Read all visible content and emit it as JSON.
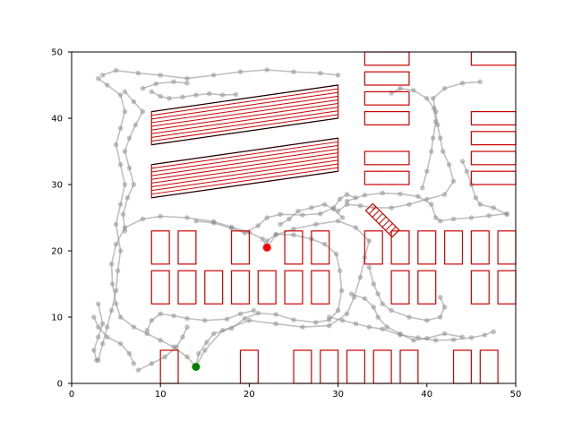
{
  "chart_data": {
    "type": "scatter",
    "title": "",
    "xlabel": "",
    "ylabel": "",
    "xlim": [
      0,
      50
    ],
    "ylim": [
      0,
      50
    ],
    "grid": false,
    "x_ticks": [
      "0",
      "10",
      "20",
      "30",
      "40",
      "50"
    ],
    "y_ticks": [
      "0",
      "10",
      "20",
      "30",
      "40",
      "50"
    ],
    "colors": {
      "obstacle": "#cc0000",
      "lane": "#000000",
      "path": "#8c8c8c",
      "start": "#008000",
      "goal": "#ff0000"
    },
    "start_point": [
      14.0,
      2.5
    ],
    "goal_point": [
      22.0,
      20.5
    ],
    "obstacles": [
      {
        "name": "slot-r1-1",
        "x": 10,
        "y": 0,
        "w": 2,
        "h": 5
      },
      {
        "name": "slot-r1-2",
        "x": 19,
        "y": 0,
        "w": 2,
        "h": 5
      },
      {
        "name": "slot-r1-3",
        "x": 25,
        "y": 0,
        "w": 2,
        "h": 5
      },
      {
        "name": "slot-r1-4",
        "x": 28,
        "y": 0,
        "w": 2,
        "h": 5
      },
      {
        "name": "slot-r1-5",
        "x": 31,
        "y": 0,
        "w": 2,
        "h": 5
      },
      {
        "name": "slot-r1-6",
        "x": 34,
        "y": 0,
        "w": 2,
        "h": 5
      },
      {
        "name": "slot-r1-7",
        "x": 37,
        "y": 0,
        "w": 2,
        "h": 5
      },
      {
        "name": "slot-r1-8",
        "x": 43,
        "y": 0,
        "w": 2,
        "h": 5
      },
      {
        "name": "slot-r1-9",
        "x": 46,
        "y": 0,
        "w": 2,
        "h": 5
      },
      {
        "name": "slot-r2-1",
        "x": 9,
        "y": 12,
        "w": 2,
        "h": 5
      },
      {
        "name": "slot-r2-2",
        "x": 12,
        "y": 12,
        "w": 2,
        "h": 5
      },
      {
        "name": "slot-r2-3",
        "x": 15,
        "y": 12,
        "w": 2,
        "h": 5
      },
      {
        "name": "slot-r2-4",
        "x": 18,
        "y": 12,
        "w": 2,
        "h": 5
      },
      {
        "name": "slot-r2-5",
        "x": 21,
        "y": 12,
        "w": 2,
        "h": 5
      },
      {
        "name": "slot-r2-6",
        "x": 24,
        "y": 12,
        "w": 2,
        "h": 5
      },
      {
        "name": "slot-r2-7",
        "x": 27,
        "y": 12,
        "w": 2,
        "h": 5
      },
      {
        "name": "slot-r2-8",
        "x": 36,
        "y": 12,
        "w": 2,
        "h": 5
      },
      {
        "name": "slot-r2-9",
        "x": 39,
        "y": 12,
        "w": 2,
        "h": 5
      },
      {
        "name": "slot-r2-10",
        "x": 45,
        "y": 12,
        "w": 2,
        "h": 5
      },
      {
        "name": "slot-r2-11",
        "x": 48,
        "y": 12,
        "w": 2,
        "h": 5
      },
      {
        "name": "slot-r3-1",
        "x": 9,
        "y": 18,
        "w": 2,
        "h": 5
      },
      {
        "name": "slot-r3-2",
        "x": 12,
        "y": 18,
        "w": 2,
        "h": 5
      },
      {
        "name": "slot-r3-3",
        "x": 18,
        "y": 18,
        "w": 2,
        "h": 5
      },
      {
        "name": "slot-r3-4",
        "x": 24,
        "y": 18,
        "w": 2,
        "h": 5
      },
      {
        "name": "slot-r3-5",
        "x": 27,
        "y": 18,
        "w": 2,
        "h": 5
      },
      {
        "name": "slot-r3-6",
        "x": 33,
        "y": 18,
        "w": 2,
        "h": 5
      },
      {
        "name": "slot-r3-7",
        "x": 36,
        "y": 18,
        "w": 2,
        "h": 5
      },
      {
        "name": "slot-r3-8",
        "x": 39,
        "y": 18,
        "w": 2,
        "h": 5
      },
      {
        "name": "slot-r3-9",
        "x": 42,
        "y": 18,
        "w": 2,
        "h": 5
      },
      {
        "name": "slot-r3-10",
        "x": 45,
        "y": 18,
        "w": 2,
        "h": 5
      },
      {
        "name": "slot-r3-11",
        "x": 48,
        "y": 18,
        "w": 2,
        "h": 5
      },
      {
        "name": "slot-top-1",
        "x": 33,
        "y": 30,
        "w": 5,
        "h": 2
      },
      {
        "name": "slot-top-2",
        "x": 33,
        "y": 33,
        "w": 5,
        "h": 2
      },
      {
        "name": "slot-top-3",
        "x": 33,
        "y": 39,
        "w": 5,
        "h": 2
      },
      {
        "name": "slot-top-4",
        "x": 33,
        "y": 42,
        "w": 5,
        "h": 2
      },
      {
        "name": "slot-top-5",
        "x": 33,
        "y": 45,
        "w": 5,
        "h": 2
      },
      {
        "name": "slot-top-6",
        "x": 33,
        "y": 48,
        "w": 5,
        "h": 2
      },
      {
        "name": "slot-right-1",
        "x": 45,
        "y": 30,
        "w": 5,
        "h": 2
      },
      {
        "name": "slot-right-2",
        "x": 45,
        "y": 33,
        "w": 5,
        "h": 2
      },
      {
        "name": "slot-right-3",
        "x": 45,
        "y": 36,
        "w": 5,
        "h": 2
      },
      {
        "name": "slot-right-4",
        "x": 45,
        "y": 39,
        "w": 5,
        "h": 2
      },
      {
        "name": "slot-right-5",
        "x": 45,
        "y": 48,
        "w": 5,
        "h": 2
      }
    ],
    "slanted_upper": {
      "x0": 9,
      "x1": 30,
      "y_left_bottom": 36,
      "y_right_bottom": 40,
      "y_left_top": 41,
      "y_right_top": 45,
      "stripes": 9
    },
    "slanted_lower": {
      "x0": 9,
      "x1": 30,
      "y_left_bottom": 28,
      "y_right_bottom": 32,
      "y_left_top": 33,
      "y_right_top": 37,
      "stripes": 9
    },
    "diagonal_block": {
      "cx": 35,
      "cy": 24.6,
      "length": 4.2,
      "width": 1.5,
      "angle_deg": -45,
      "stripes": 8
    },
    "paths": [
      [
        [
          14.0,
          2.5
        ],
        [
          14.3,
          4.5
        ],
        [
          15.2,
          6.2
        ],
        [
          16.0,
          7.5
        ],
        [
          18.0,
          8.3
        ],
        [
          19.5,
          9.8
        ],
        [
          21.0,
          10.6
        ],
        [
          23.0,
          10.4
        ],
        [
          25.0,
          9.6
        ],
        [
          27.5,
          9.2
        ],
        [
          29.0,
          9.6
        ],
        [
          30.0,
          11.0
        ],
        [
          30.4,
          14.0
        ],
        [
          30.2,
          17.0
        ],
        [
          29.8,
          19.5
        ],
        [
          28.5,
          21.0
        ],
        [
          27.0,
          21.8
        ],
        [
          25.0,
          22.4
        ],
        [
          23.0,
          22.5
        ],
        [
          22.0,
          21.5
        ],
        [
          22.0,
          20.5
        ]
      ],
      [
        [
          14.0,
          2.5
        ],
        [
          13.0,
          4.0
        ],
        [
          11.5,
          5.5
        ],
        [
          10.0,
          6.5
        ],
        [
          8.5,
          7.5
        ],
        [
          7.0,
          8.5
        ],
        [
          5.5,
          10.0
        ],
        [
          5.0,
          12.0
        ],
        [
          4.6,
          15.0
        ],
        [
          4.5,
          18.0
        ],
        [
          5.0,
          21.0
        ],
        [
          6.0,
          23.5
        ],
        [
          8.0,
          24.8
        ],
        [
          10.0,
          25.2
        ],
        [
          13.0,
          25.0
        ],
        [
          16.0,
          24.4
        ],
        [
          18.0,
          23.6
        ],
        [
          20.0,
          22.8
        ],
        [
          21.5,
          21.8
        ],
        [
          22.0,
          20.5
        ]
      ],
      [
        [
          14.0,
          2.5
        ],
        [
          15.0,
          5.0
        ],
        [
          17.0,
          8.0
        ],
        [
          20.0,
          9.5
        ],
        [
          23.0,
          9.0
        ],
        [
          26.0,
          8.5
        ],
        [
          29.0,
          8.7
        ],
        [
          31.0,
          10.5
        ],
        [
          31.8,
          13.0
        ],
        [
          32.5,
          16.0
        ],
        [
          33.0,
          19.0
        ],
        [
          33.5,
          21.5
        ],
        [
          32.0,
          23.5
        ],
        [
          30.0,
          24.5
        ],
        [
          27.5,
          24.0
        ],
        [
          25.0,
          23.3
        ],
        [
          23.0,
          22.4
        ],
        [
          22.0,
          20.5
        ]
      ],
      [
        [
          3.5,
          46.5
        ],
        [
          5.0,
          47.2
        ],
        [
          7.5,
          46.8
        ],
        [
          10.0,
          46.5
        ],
        [
          13.0,
          46.0
        ],
        [
          16.0,
          46.5
        ],
        [
          19.0,
          47.0
        ],
        [
          22.0,
          47.3
        ],
        [
          25.0,
          47.0
        ],
        [
          28.0,
          46.8
        ],
        [
          30.0,
          46.5
        ]
      ],
      [
        [
          3.0,
          46.0
        ],
        [
          4.0,
          45.0
        ],
        [
          5.5,
          43.5
        ],
        [
          6.0,
          41.0
        ],
        [
          5.5,
          38.5
        ],
        [
          5.0,
          36.0
        ],
        [
          5.5,
          33.0
        ],
        [
          6.0,
          30.0
        ],
        [
          5.5,
          27.0
        ],
        [
          5.0,
          24.0
        ],
        [
          5.5,
          20.0
        ],
        [
          5.2,
          17.0
        ],
        [
          5.0,
          14.0
        ],
        [
          4.5,
          11.0
        ],
        [
          4.0,
          8.5
        ],
        [
          3.5,
          6.0
        ],
        [
          3.0,
          3.5
        ]
      ],
      [
        [
          6.0,
          44.0
        ],
        [
          7.0,
          42.5
        ],
        [
          8.0,
          41.0
        ],
        [
          7.2,
          39.0
        ],
        [
          6.5,
          37.0
        ],
        [
          6.0,
          35.0
        ],
        [
          6.5,
          32.5
        ],
        [
          7.0,
          30.0
        ],
        [
          6.3,
          28.0
        ],
        [
          5.8,
          25.5
        ],
        [
          6.0,
          23.0
        ]
      ],
      [
        [
          31.0,
          27.5
        ],
        [
          33.0,
          28.4
        ],
        [
          35.0,
          28.7
        ],
        [
          37.0,
          28.6
        ],
        [
          39.0,
          28.2
        ],
        [
          40.5,
          27.0
        ],
        [
          41.0,
          25.0
        ],
        [
          41.5,
          24.5
        ],
        [
          43.0,
          24.8
        ],
        [
          45.0,
          25.0
        ],
        [
          47.0,
          25.3
        ],
        [
          49.0,
          25.6
        ]
      ],
      [
        [
          30.0,
          26.0
        ],
        [
          31.0,
          27.0
        ],
        [
          32.5,
          26.8
        ],
        [
          34.0,
          26.5
        ],
        [
          36.0,
          26.5
        ],
        [
          38.0,
          27.0
        ],
        [
          40.0,
          27.8
        ],
        [
          42.0,
          28.5
        ],
        [
          43.0,
          30.5
        ],
        [
          42.5,
          33.0
        ],
        [
          41.8,
          35.0
        ],
        [
          41.5,
          37.0
        ],
        [
          41.2,
          39.0
        ],
        [
          41.0,
          41.0
        ],
        [
          40.7,
          43.0
        ],
        [
          42.0,
          44.5
        ],
        [
          44.0,
          45.3
        ],
        [
          46.0,
          45.5
        ]
      ],
      [
        [
          14.0,
          24.5
        ],
        [
          16.0,
          24.2
        ],
        [
          18.0,
          23.4
        ],
        [
          19.5,
          22.7
        ],
        [
          21.0,
          23.8
        ],
        [
          22.0,
          25.0
        ],
        [
          23.5,
          25.5
        ],
        [
          26.0,
          25.4
        ],
        [
          28.0,
          25.6
        ],
        [
          29.5,
          26.5
        ],
        [
          30.2,
          27.8
        ],
        [
          31.0,
          28.5
        ],
        [
          32.0,
          28.0
        ]
      ],
      [
        [
          8.5,
          8.0
        ],
        [
          9.0,
          9.5
        ],
        [
          10.0,
          10.5
        ],
        [
          11.5,
          10.2
        ],
        [
          13.0,
          9.8
        ],
        [
          15.0,
          9.5
        ],
        [
          17.5,
          9.7
        ],
        [
          19.0,
          10.5
        ],
        [
          20.5,
          11.0
        ]
      ],
      [
        [
          2.5,
          10.0
        ],
        [
          3.0,
          8.5
        ],
        [
          4.0,
          7.0
        ],
        [
          5.5,
          6.0
        ],
        [
          6.5,
          4.5
        ],
        [
          7.0,
          3.0
        ]
      ],
      [
        [
          7.5,
          2.0
        ],
        [
          9.0,
          3.0
        ],
        [
          10.5,
          4.0
        ],
        [
          11.8,
          5.5
        ],
        [
          12.5,
          7.0
        ],
        [
          13.0,
          8.5
        ]
      ],
      [
        [
          29.0,
          10.0
        ],
        [
          30.5,
          9.5
        ],
        [
          32.0,
          9.0
        ],
        [
          33.5,
          8.5
        ],
        [
          35.0,
          8.2
        ],
        [
          37.0,
          7.3
        ],
        [
          39.0,
          6.9
        ],
        [
          41.0,
          6.5
        ],
        [
          43.0,
          6.6
        ],
        [
          45.0,
          6.9
        ],
        [
          46.5,
          7.3
        ],
        [
          47.5,
          7.8
        ]
      ],
      [
        [
          31.5,
          13.5
        ],
        [
          33.0,
          12.8
        ],
        [
          34.0,
          11.5
        ],
        [
          34.5,
          10.0
        ],
        [
          35.5,
          8.5
        ],
        [
          37.0,
          7.5
        ],
        [
          38.5,
          6.5
        ],
        [
          40.0,
          6.8
        ],
        [
          42.0,
          7.5
        ],
        [
          44.0,
          7.0
        ]
      ],
      [
        [
          33.5,
          17.5
        ],
        [
          34.0,
          15.0
        ],
        [
          34.5,
          13.5
        ],
        [
          35.0,
          12.0
        ],
        [
          36.0,
          11.0
        ],
        [
          38.0,
          10.0
        ],
        [
          40.0,
          9.5
        ],
        [
          41.5,
          10.0
        ],
        [
          42.0,
          11.5
        ],
        [
          41.5,
          13.0
        ]
      ],
      [
        [
          9.0,
          44.0
        ],
        [
          10.0,
          43.3
        ],
        [
          11.0,
          43.0
        ],
        [
          12.5,
          43.2
        ],
        [
          14.0,
          43.5
        ],
        [
          15.5,
          43.7
        ],
        [
          17.0,
          43.5
        ],
        [
          18.5,
          43.6
        ]
      ],
      [
        [
          36.0,
          43.8
        ],
        [
          37.0,
          44.5
        ],
        [
          38.5,
          44.2
        ],
        [
          40.0,
          43.0
        ],
        [
          40.8,
          41.5
        ],
        [
          41.0,
          39.5
        ],
        [
          40.7,
          37.0
        ],
        [
          40.5,
          35.0
        ],
        [
          40.0,
          32.0
        ],
        [
          39.5,
          29.5
        ]
      ],
      [
        [
          44.0,
          33.5
        ],
        [
          44.5,
          32.0
        ],
        [
          45.0,
          30.0
        ],
        [
          45.5,
          28.0
        ],
        [
          46.0,
          27.0
        ],
        [
          47.5,
          26.5
        ],
        [
          49.0,
          25.5
        ]
      ],
      [
        [
          23.5,
          24.0
        ],
        [
          24.5,
          24.8
        ],
        [
          25.5,
          26.0
        ],
        [
          27.0,
          26.5
        ],
        [
          28.5,
          27.0
        ],
        [
          29.5,
          26.3
        ],
        [
          30.5,
          25.0
        ]
      ],
      [
        [
          8.0,
          44.5
        ],
        [
          9.5,
          45.2
        ],
        [
          11.5,
          45.5
        ],
        [
          13.0,
          45.3
        ]
      ],
      [
        [
          3.0,
          12.0
        ],
        [
          3.5,
          9.0
        ],
        [
          3.0,
          7.0
        ],
        [
          2.5,
          5.0
        ],
        [
          2.8,
          3.5
        ]
      ]
    ]
  }
}
